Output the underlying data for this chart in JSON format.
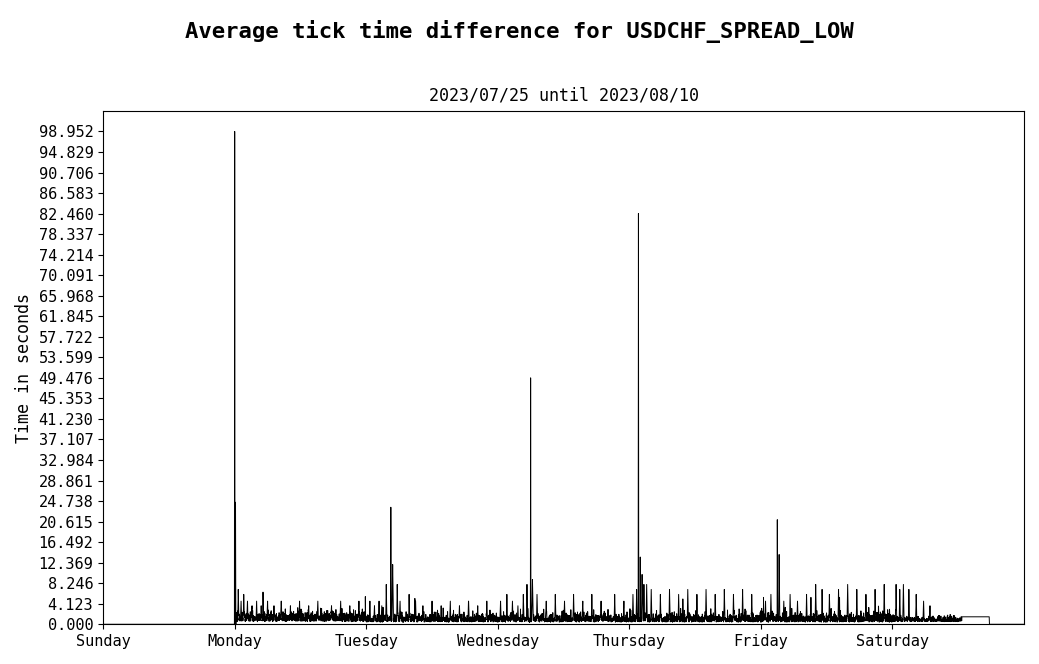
{
  "title": "Average tick time difference for USDCHF_SPREAD_LOW",
  "subtitle": "2023/07/25 until 2023/08/10",
  "ylabel": "Time in seconds",
  "yticks": [
    0.0,
    4.123,
    8.246,
    12.369,
    16.492,
    20.615,
    24.738,
    28.861,
    32.984,
    37.107,
    41.23,
    45.353,
    49.476,
    53.599,
    57.722,
    61.845,
    65.968,
    70.091,
    74.214,
    78.337,
    82.46,
    86.583,
    90.706,
    94.829,
    98.952
  ],
  "xlabels": [
    "Sunday",
    "Monday",
    "Tuesday",
    "Wednesday",
    "Thursday",
    "Friday",
    "Saturday"
  ],
  "xpositions": [
    0,
    1440,
    2880,
    4320,
    5760,
    7200,
    8640
  ],
  "total_minutes": 10080,
  "ymax": 103,
  "line_color": "#000000",
  "bg_color": "#ffffff",
  "title_fontsize": 16,
  "subtitle_fontsize": 12,
  "label_fontsize": 12,
  "tick_fontsize": 11
}
